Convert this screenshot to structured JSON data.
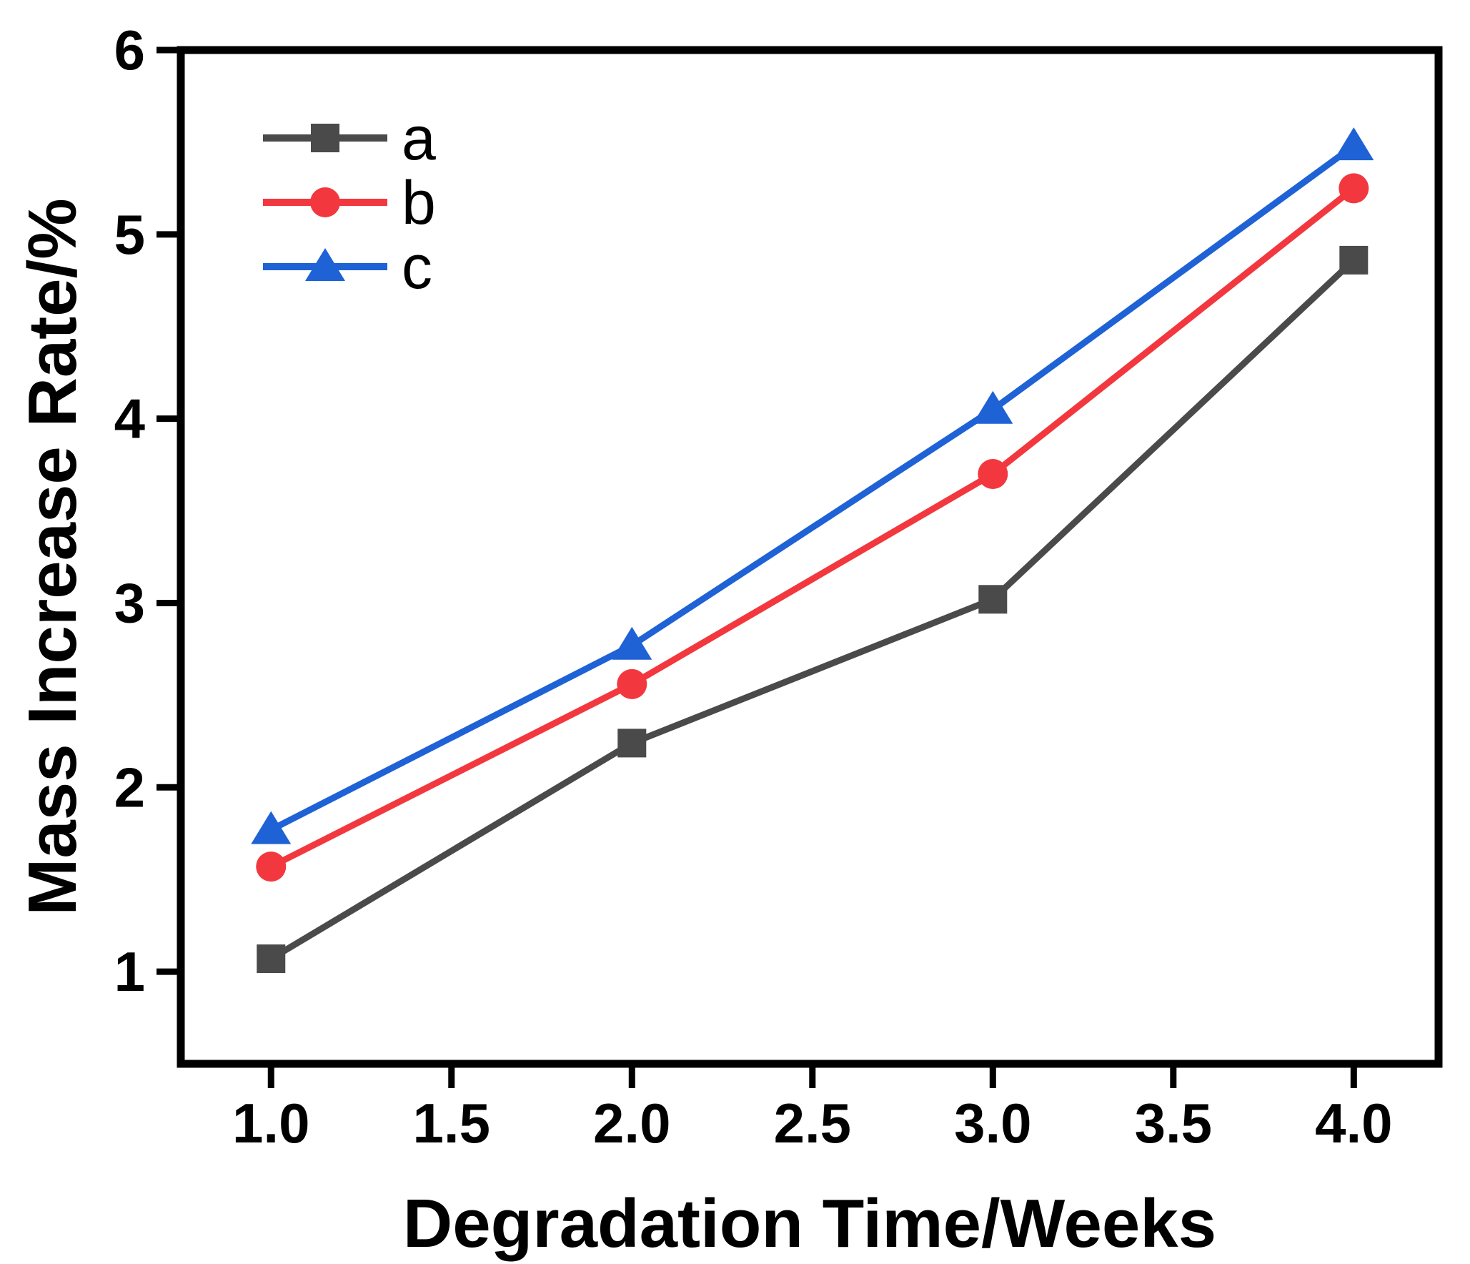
{
  "chart_data": {
    "type": "line",
    "title": "",
    "xlabel": "Degradation Time/Weeks",
    "ylabel": "Mass Increase Rate/%",
    "x": [
      1.0,
      2.0,
      3.0,
      4.0
    ],
    "series": [
      {
        "name": "a",
        "color": "#4A4A4A",
        "marker": "square",
        "values": [
          1.07,
          2.24,
          3.02,
          4.86
        ]
      },
      {
        "name": "b",
        "color": "#F2383E",
        "marker": "circle",
        "values": [
          1.57,
          2.56,
          3.7,
          5.25
        ]
      },
      {
        "name": "c",
        "color": "#1E62D6",
        "marker": "triangle",
        "values": [
          1.77,
          2.77,
          4.05,
          5.48
        ]
      }
    ],
    "xlim": [
      0.75,
      4.235
    ],
    "ylim": [
      0.5,
      6.0
    ],
    "x_ticks": [
      1.0,
      1.5,
      2.0,
      2.5,
      3.0,
      3.5,
      4.0
    ],
    "x_tick_labels": [
      "1.0",
      "1.5",
      "2.0",
      "2.5",
      "3.0",
      "3.5",
      "4.0"
    ],
    "y_ticks": [
      1,
      2,
      3,
      4,
      5,
      6
    ],
    "y_tick_labels": [
      "1",
      "2",
      "3",
      "4",
      "5",
      "6"
    ],
    "grid": false,
    "legend": {
      "position": "upper-left",
      "entries": [
        "a",
        "b",
        "c"
      ]
    },
    "colors": {
      "axis": "#000000",
      "background": "#FFFFFF"
    }
  }
}
